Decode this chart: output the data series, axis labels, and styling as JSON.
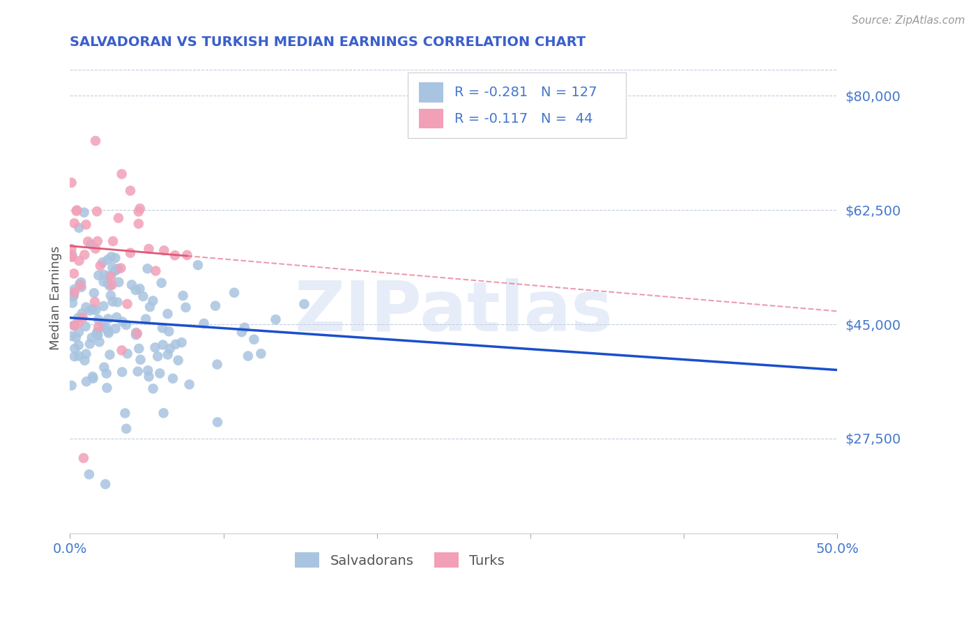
{
  "title": "SALVADORAN VS TURKISH MEDIAN EARNINGS CORRELATION CHART",
  "source_text": "Source: ZipAtlas.com",
  "ylabel": "Median Earnings",
  "xmin": 0.0,
  "xmax": 0.5,
  "ymin": 13000,
  "ymax": 85000,
  "yticks": [
    27500,
    45000,
    62500,
    80000
  ],
  "ytick_labels": [
    "$27,500",
    "$45,000",
    "$62,500",
    "$80,000"
  ],
  "xticks": [
    0.0,
    0.1,
    0.2,
    0.3,
    0.4,
    0.5
  ],
  "xtick_labels": [
    "0.0%",
    "",
    "",
    "",
    "",
    "50.0%"
  ],
  "salvadoran_color": "#a8c4e0",
  "turkish_color": "#f2a0b8",
  "trend_blue": "#1a4fcc",
  "trend_pink": "#e05878",
  "R_salv": -0.281,
  "N_salv": 127,
  "R_turk": -0.117,
  "N_turk": 44,
  "watermark": "ZIPatlas",
  "title_color": "#3a5fcc",
  "axis_label_color": "#555555",
  "tick_color": "#4477cc",
  "legend_label_salv": "Salvadorans",
  "legend_label_turk": "Turks"
}
